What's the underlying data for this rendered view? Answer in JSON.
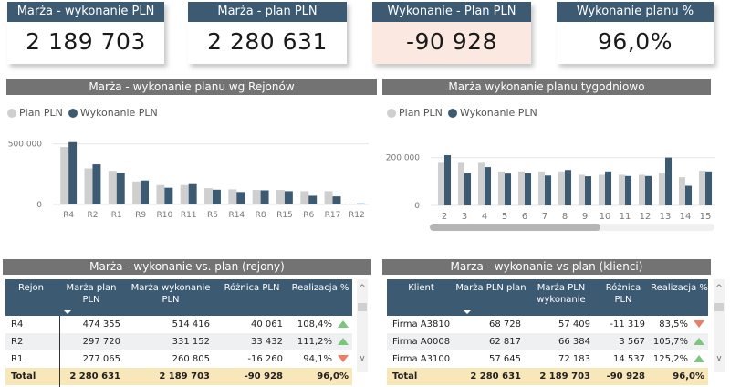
{
  "kpis": [
    {
      "title": "Marża - wykonanie PLN",
      "value": "2 189 703"
    },
    {
      "title": "Marża - plan PLN",
      "value": "2 280 631"
    },
    {
      "title": "Wykonanie - Plan PLN",
      "value": "-90 928"
    },
    {
      "title": "Wykonanie planu %",
      "value": "96,0%"
    }
  ],
  "colors": {
    "header_blue": "#3d5a73",
    "plan_grey": "#cfcfcf",
    "actual_blue": "#3d5a73",
    "negative_bg": "#fbe9e1",
    "total_bg": "#f8e7b8",
    "up_green": "#7dc47d",
    "down_red": "#ee7d65"
  },
  "chart_data": [
    {
      "type": "bar",
      "title": "Marża - wykonanie planu wg Rejonów",
      "legend": [
        "Plan PLN",
        "Wykonanie PLN"
      ],
      "legend_position": "top-left",
      "categories": [
        "R4",
        "R2",
        "R1",
        "R9",
        "R10",
        "R11",
        "R5",
        "R14",
        "R8",
        "R15",
        "R6",
        "R17",
        "R12"
      ],
      "series": [
        {
          "name": "Plan PLN",
          "values": [
            474355,
            297720,
            277065,
            190000,
            160000,
            160000,
            135000,
            125000,
            120000,
            120000,
            110000,
            110000,
            8000
          ]
        },
        {
          "name": "Wykonanie PLN",
          "values": [
            514416,
            331152,
            260805,
            198000,
            138000,
            168000,
            122000,
            103000,
            117000,
            110000,
            72000,
            67000,
            9000
          ]
        }
      ],
      "yticks": [
        0,
        500000
      ],
      "ytick_labels": [
        "0",
        "500 000"
      ],
      "ylim": [
        0,
        520000
      ],
      "grid": true
    },
    {
      "type": "bar",
      "title": "Marża wykonanie planu tygodniowo",
      "legend": [
        "Plan PLN",
        "Wykonanie PLN"
      ],
      "legend_position": "top-left",
      "categories": [
        "2",
        "3",
        "4",
        "5",
        "6",
        "7",
        "8",
        "9",
        "10",
        "11",
        "12",
        "13",
        "14",
        "15"
      ],
      "series": [
        {
          "name": "Plan PLN",
          "values": [
            178000,
            178000,
            178000,
            142000,
            142000,
            142000,
            142000,
            128000,
            128000,
            128000,
            128000,
            135000,
            118000,
            145000
          ]
        },
        {
          "name": "Wykonanie PLN",
          "values": [
            210000,
            135000,
            160000,
            133000,
            135000,
            125000,
            148000,
            122000,
            142000,
            123000,
            123000,
            200000,
            82000,
            142000
          ]
        }
      ],
      "yticks": [
        0,
        200000
      ],
      "ytick_labels": [
        "0",
        "200 000"
      ],
      "ylim": [
        0,
        210000
      ],
      "grid": true,
      "horizontal_scroll_fraction": 0.6
    }
  ],
  "table_regions": {
    "title": "Marża - wykonanie vs. plan (rejony)",
    "columns": [
      "Rejon",
      "Marża plan PLN",
      "Marża wykonanie PLN",
      "Różnica PLN",
      "Realizacja %"
    ],
    "rows": [
      {
        "name": "R4",
        "plan": "474 355",
        "actual": "514 416",
        "diff": "40 061",
        "pct": "108,4%",
        "trend": "up"
      },
      {
        "name": "R2",
        "plan": "297 720",
        "actual": "331 152",
        "diff": "33 432",
        "pct": "111,2%",
        "trend": "up"
      },
      {
        "name": "R1",
        "plan": "277 065",
        "actual": "260 805",
        "diff": "-16 260",
        "pct": "94,1%",
        "trend": "down"
      }
    ],
    "total": {
      "name": "Total",
      "plan": "2 280 631",
      "actual": "2 189 703",
      "diff": "-90 928",
      "pct": "96,0%"
    }
  },
  "table_clients": {
    "title": "Marza - wykonanie vs plan (klienci)",
    "columns": [
      "Klient",
      "Marża PLN plan",
      "Marża PLN wykonanie",
      "Różnica PLN",
      "Realizacja %"
    ],
    "rows": [
      {
        "name": "Firma A3810",
        "plan": "68 728",
        "actual": "57 409",
        "diff": "-11 319",
        "pct": "83,5%",
        "trend": "down"
      },
      {
        "name": "Firma A0008",
        "plan": "62 817",
        "actual": "66 384",
        "diff": "3 567",
        "pct": "105,7%",
        "trend": "up"
      },
      {
        "name": "Firma A3100",
        "plan": "57 645",
        "actual": "72 183",
        "diff": "14 537",
        "pct": "125,2%",
        "trend": "up"
      }
    ],
    "total": {
      "name": "Total",
      "plan": "2 280 631",
      "actual": "2 189 703",
      "diff": "-90 928",
      "pct": "96,0%"
    }
  },
  "scroll_glyphs": {
    "up": "^",
    "down": "v"
  }
}
